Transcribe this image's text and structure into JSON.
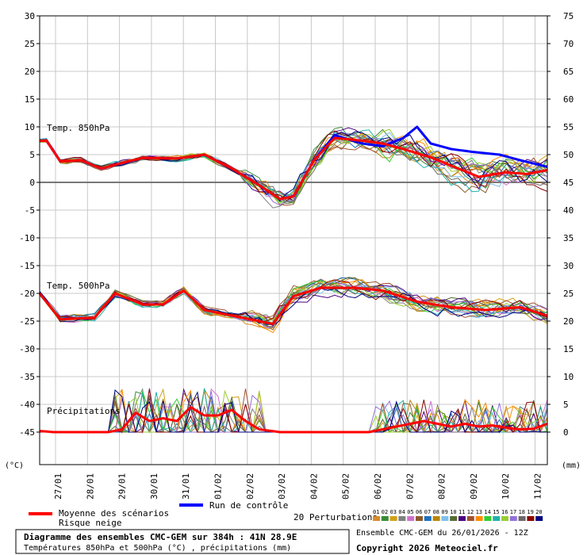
{
  "chart_data": {
    "type": "line",
    "title": "Diagramme des ensembles CMC-GEM sur 384h : 41N 28.9E",
    "subtitle": "Températures 850hPa et 500hPa (°C) , précipitations (mm)",
    "run_label": "Ensemble CMC-GEM du 26/01/2026 - 12Z",
    "copyright": "Copyright 2026 Meteociel.fr",
    "y_left_unit": "(°C)",
    "y_right_unit": "(mm)",
    "y_left_ticks": [
      "30",
      "25",
      "20",
      "15",
      "10",
      "5",
      "0",
      "-5",
      "-10",
      "-15",
      "-20",
      "-25",
      "-30",
      "-35",
      "-40",
      "-45"
    ],
    "y_right_ticks": [
      "75",
      "70",
      "65",
      "60",
      "55",
      "50",
      "45",
      "40",
      "35",
      "30",
      "25",
      "20",
      "15",
      "10",
      "5",
      "0"
    ],
    "ylim": [
      -51,
      30
    ],
    "x_labels": [
      "27/01",
      "28/01",
      "29/01",
      "30/01",
      "31/01",
      "01/02",
      "02/02",
      "03/02",
      "04/02",
      "05/02",
      "06/02",
      "07/02",
      "08/02",
      "09/02",
      "10/02",
      "11/02"
    ],
    "x_steps": 64,
    "section_labels": {
      "t850": "Temp. 850hPa",
      "t500": "Temp. 500hPa",
      "precip": "Précipitations"
    },
    "legend": {
      "mean": "Moyenne des scénarios",
      "snow": "Risque neige",
      "control": "Run de contrôle",
      "perturbations": "20 Perturbations",
      "member_numbers": [
        "01",
        "02",
        "03",
        "04",
        "05",
        "06",
        "07",
        "08",
        "09",
        "10",
        "11",
        "12",
        "13",
        "14",
        "15",
        "16",
        "17",
        "18",
        "19",
        "20"
      ]
    },
    "member_colors": [
      "#d98c2b",
      "#3a8a3a",
      "#d4a017",
      "#808080",
      "#d070d0",
      "#8b5a2b",
      "#1e6fbf",
      "#b8860b",
      "#7ec0ee",
      "#556b2f",
      "#4b0082",
      "#a0522d",
      "#ff8c00",
      "#32cd32",
      "#20b2aa",
      "#9acd32",
      "#9370db",
      "#696969",
      "#8b0000",
      "#000080"
    ],
    "series": [
      {
        "name": "Moyenne 850hPa",
        "color": "#ff0000",
        "keys": [
          [
            0,
            7.5
          ],
          [
            1,
            7.5
          ],
          [
            3,
            3.8
          ],
          [
            6,
            4
          ],
          [
            9,
            2.5
          ],
          [
            12,
            3.5
          ],
          [
            15,
            4.4
          ],
          [
            20,
            4.3
          ],
          [
            24,
            5
          ],
          [
            28,
            2.5
          ],
          [
            32,
            -0.5
          ],
          [
            35,
            -3
          ],
          [
            37,
            -2.5
          ],
          [
            40,
            4
          ],
          [
            43,
            8
          ],
          [
            47,
            7.5
          ],
          [
            50,
            7
          ],
          [
            53,
            6
          ],
          [
            57,
            4.5
          ],
          [
            61,
            2.5
          ],
          [
            64,
            1
          ],
          [
            68,
            1.8
          ],
          [
            71,
            1.5
          ],
          [
            74,
            2.2
          ]
        ]
      },
      {
        "name": "Contrôle 850hPa",
        "color": "#0000ff",
        "keys": [
          [
            0,
            7.5
          ],
          [
            1,
            7.5
          ],
          [
            3,
            3.8
          ],
          [
            6,
            4
          ],
          [
            9,
            2.5
          ],
          [
            12,
            3.5
          ],
          [
            15,
            4.4
          ],
          [
            20,
            4.3
          ],
          [
            24,
            5
          ],
          [
            28,
            2.5
          ],
          [
            32,
            -0.5
          ],
          [
            35,
            -3
          ],
          [
            37,
            -2.5
          ],
          [
            40,
            4
          ],
          [
            43,
            8.5
          ],
          [
            47,
            7
          ],
          [
            50,
            6.5
          ],
          [
            53,
            8
          ],
          [
            55,
            10
          ],
          [
            57,
            7
          ],
          [
            60,
            6
          ],
          [
            63,
            5.5
          ],
          [
            67,
            5
          ],
          [
            70,
            4
          ],
          [
            74,
            2.8
          ]
        ]
      },
      {
        "name": "Moyenne 500hPa",
        "color": "#ff0000",
        "keys": [
          [
            0,
            -20
          ],
          [
            3,
            -24.7
          ],
          [
            6,
            -24.5
          ],
          [
            8,
            -24.4
          ],
          [
            11,
            -20
          ],
          [
            15,
            -22
          ],
          [
            18,
            -22
          ],
          [
            21,
            -19.5
          ],
          [
            24,
            -23
          ],
          [
            28,
            -24
          ],
          [
            32,
            -25
          ],
          [
            34,
            -25.5
          ],
          [
            37,
            -20.5
          ],
          [
            41,
            -19
          ],
          [
            46,
            -19
          ],
          [
            50,
            -19.5
          ],
          [
            55,
            -21.5
          ],
          [
            60,
            -22.5
          ],
          [
            65,
            -23
          ],
          [
            70,
            -22.5
          ],
          [
            74,
            -24
          ]
        ]
      },
      {
        "name": "Moyenne précipitations (mm)",
        "color": "#ff0000",
        "keys": [
          [
            0,
            0.2
          ],
          [
            2,
            0
          ],
          [
            10,
            0
          ],
          [
            12,
            0.5
          ],
          [
            14,
            3.5
          ],
          [
            16,
            2
          ],
          [
            18,
            2.5
          ],
          [
            20,
            2
          ],
          [
            22,
            4.5
          ],
          [
            24,
            3
          ],
          [
            26,
            3
          ],
          [
            28,
            4
          ],
          [
            30,
            2
          ],
          [
            32,
            0.5
          ],
          [
            35,
            0
          ],
          [
            40,
            0
          ],
          [
            48,
            0
          ],
          [
            50,
            0.5
          ],
          [
            52,
            1
          ],
          [
            54,
            1.5
          ],
          [
            56,
            2
          ],
          [
            58,
            1.5
          ],
          [
            60,
            1
          ],
          [
            62,
            1.5
          ],
          [
            64,
            1
          ],
          [
            66,
            1.2
          ],
          [
            68,
            0.8
          ],
          [
            70,
            0.5
          ],
          [
            72,
            0.6
          ],
          [
            74,
            1.5
          ]
        ]
      }
    ]
  }
}
